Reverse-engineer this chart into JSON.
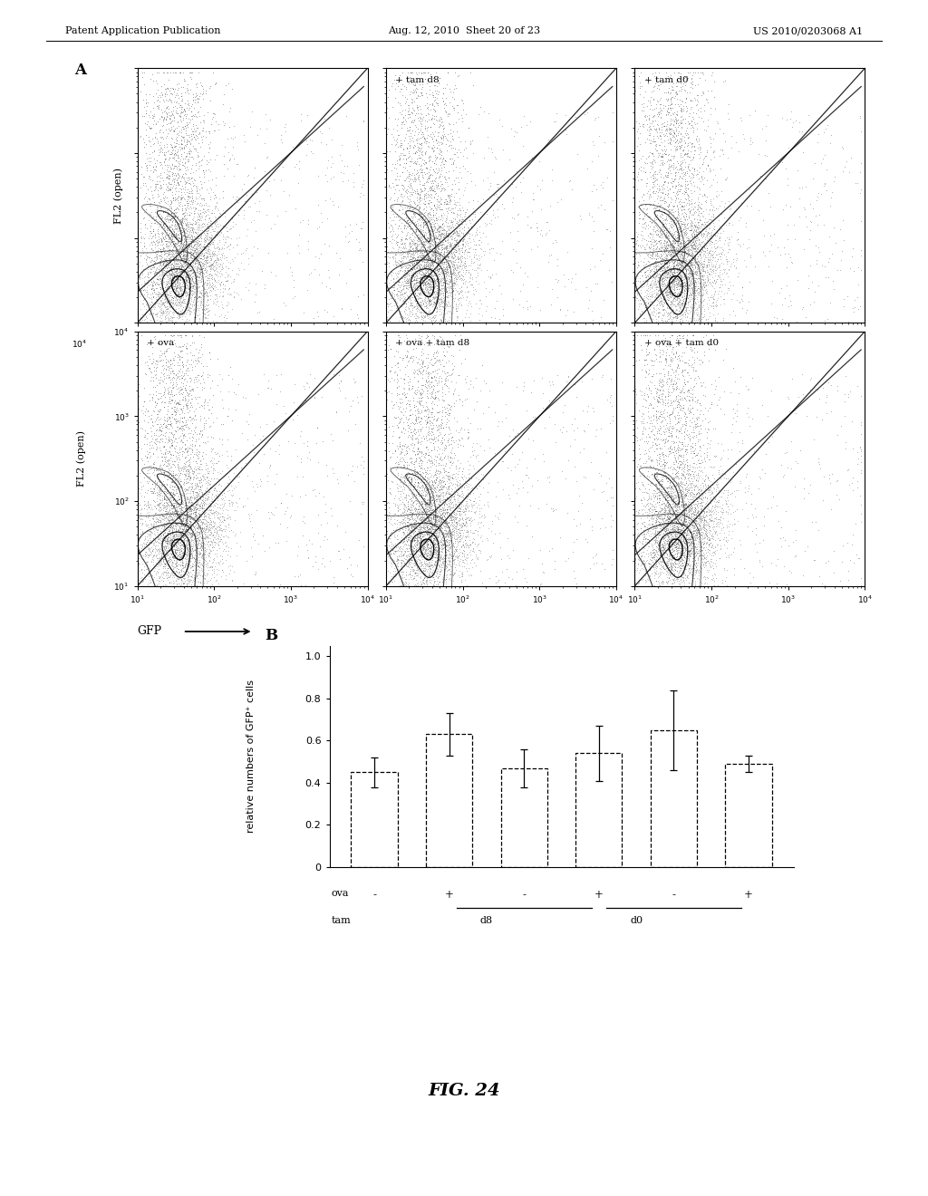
{
  "header_left": "Patent Application Publication",
  "header_center": "Aug. 12, 2010  Sheet 20 of 23",
  "header_right": "US 2010/0203068 A1",
  "panel_A_label": "A",
  "panel_B_label": "B",
  "flow_labels_row1": [
    "",
    "+ tam d8",
    "+ tam d0"
  ],
  "flow_labels_row2": [
    "+ ova",
    "+ ova + tam d8",
    "+ ova + tam d0"
  ],
  "fl2_label": "FL2 (open)",
  "gfp_label": "GFP",
  "bar_values": [
    0.45,
    0.63,
    0.47,
    0.54,
    0.65,
    0.49
  ],
  "bar_errors": [
    0.07,
    0.1,
    0.09,
    0.13,
    0.19,
    0.04
  ],
  "bar_color": "#ffffff",
  "bar_edge_color": "#000000",
  "ylim_bar": [
    0.0,
    1.0
  ],
  "ylabel_bar": "relative numbers of GFP⁺ cells",
  "ova_labels": [
    "-",
    "+",
    "-",
    "+",
    "-",
    "+"
  ],
  "fig24_label": "FIG. 24",
  "background_color": "#ffffff"
}
